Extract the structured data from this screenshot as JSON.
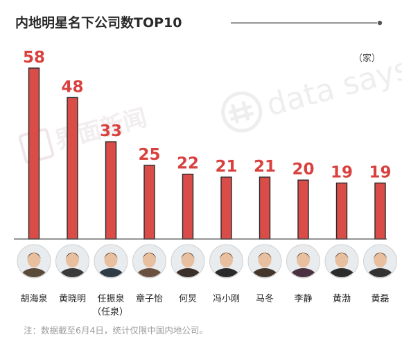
{
  "title": "内地明星名下公司数TOP10",
  "unit": "（家）",
  "note": "注：数据截至6月4日，统计仅限中国内地公司。",
  "watermark": {
    "cn": "界面新闻",
    "en": "data says"
  },
  "colors": {
    "bar": "#d94c48",
    "value": "#d9413f",
    "axis": "#555555"
  },
  "chart_data": {
    "type": "bar",
    "categories": [
      "胡海泉",
      "黄晓明",
      "任振泉",
      "章子怡",
      "何炅",
      "冯小刚",
      "马冬",
      "李静",
      "黄渤",
      "黄磊"
    ],
    "sublabels": [
      "",
      "",
      "（任泉）",
      "",
      "",
      "",
      "",
      "",
      "",
      ""
    ],
    "values": [
      58,
      48,
      33,
      25,
      22,
      21,
      21,
      20,
      19,
      19
    ],
    "title": "内地明星名下公司数TOP10",
    "ylabel": "（家）",
    "ylim": [
      0,
      60
    ],
    "grid": false,
    "data_labels": true,
    "avatars": [
      "avatar-hu-haiquan",
      "avatar-huang-xiaoming",
      "avatar-ren-zhenquan",
      "avatar-zhang-ziyi",
      "avatar-he-jiong",
      "avatar-feng-xiaogang",
      "avatar-ma-dong",
      "avatar-li-jing",
      "avatar-huang-bo",
      "avatar-huang-lei"
    ]
  }
}
